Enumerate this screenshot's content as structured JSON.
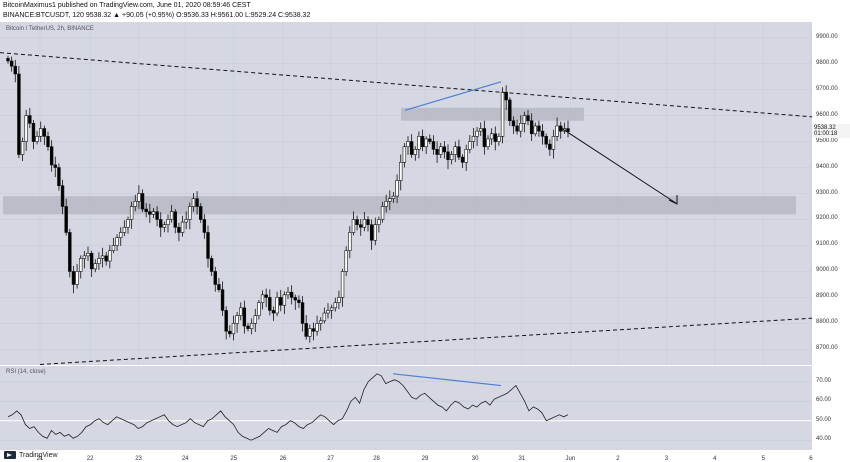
{
  "header": {
    "line1": "BitcoinMaximus1 published on TradingView.com, June 01, 2020 08:59:46 CEST",
    "line2": "BINANCE:BTCUSDT, 120  9538.32  ▲ +90.05 (+0.95%)  O:9536.33  H:9561.00  L:9529.24  C:9538.32"
  },
  "chart_title": "Bitcoin / TetherUS, 2h, BINANCE",
  "rsi_title": "RSI (14, close)",
  "price_tag": {
    "price": "9538.32",
    "countdown": "01:00:18"
  },
  "footer": {
    "brand": "TradingView"
  },
  "colors": {
    "bg": "#d5d8e2",
    "zone": "#b6b9c3",
    "candle_up": "#ffffff",
    "candle_down": "#000000",
    "divergence": "#4a7fd6"
  },
  "chart_data": {
    "type": "candlestick",
    "title": "Bitcoin / TetherUS, 2h, BINANCE",
    "y_ticks": [
      9900,
      9800,
      9700,
      9600,
      9500,
      9400,
      9300,
      9200,
      9100,
      9000,
      8900,
      8800,
      8700
    ],
    "y_tick_labels": [
      "9900.00",
      "9800.00",
      "9700.00",
      "9600.00",
      "9500.00",
      "9400.00",
      "9300.00",
      "9200.00",
      "9100.00",
      "9000.00",
      "8900.00",
      "8800.00",
      "8700.00"
    ],
    "ylim": [
      8640,
      9960
    ],
    "x_ticks": [
      {
        "label": "21",
        "pos": 0.047
      },
      {
        "label": "22",
        "pos": 0.106
      },
      {
        "label": "23",
        "pos": 0.163
      },
      {
        "label": "24",
        "pos": 0.218
      },
      {
        "label": "25",
        "pos": 0.275
      },
      {
        "label": "26",
        "pos": 0.333
      },
      {
        "label": "27",
        "pos": 0.389
      },
      {
        "label": "28",
        "pos": 0.443
      },
      {
        "label": "29",
        "pos": 0.5
      },
      {
        "label": "30",
        "pos": 0.559
      },
      {
        "label": "31",
        "pos": 0.614
      },
      {
        "label": "Jun",
        "pos": 0.671
      },
      {
        "label": "2",
        "pos": 0.727
      },
      {
        "label": "3",
        "pos": 0.784
      },
      {
        "label": "4",
        "pos": 0.841
      },
      {
        "label": "5",
        "pos": 0.898
      },
      {
        "label": "6",
        "pos": 0.954
      }
    ],
    "close_series": [
      9810,
      9790,
      9760,
      9450,
      9500,
      9600,
      9570,
      9500,
      9520,
      9550,
      9520,
      9480,
      9410,
      9400,
      9330,
      9250,
      9150,
      9000,
      8950,
      9000,
      9050,
      9060,
      9070,
      9010,
      9030,
      9050,
      9060,
      9040,
      9080,
      9100,
      9130,
      9150,
      9170,
      9200,
      9250,
      9270,
      9300,
      9240,
      9230,
      9220,
      9230,
      9200,
      9170,
      9180,
      9200,
      9230,
      9170,
      9150,
      9190,
      9200,
      9250,
      9280,
      9250,
      9200,
      9150,
      9050,
      9000,
      8950,
      8930,
      8850,
      8770,
      8760,
      8800,
      8830,
      8860,
      8790,
      8780,
      8800,
      8830,
      8880,
      8910,
      8900,
      8850,
      8840,
      8900,
      8870,
      8910,
      8920,
      8900,
      8890,
      8880,
      8800,
      8750,
      8780,
      8770,
      8800,
      8810,
      8840,
      8850,
      8860,
      8880,
      8900,
      9000,
      9080,
      9150,
      9200,
      9180,
      9170,
      9200,
      9180,
      9120,
      9180,
      9200,
      9250,
      9270,
      9280,
      9290,
      9350,
      9420,
      9480,
      9500,
      9450,
      9470,
      9520,
      9480,
      9510,
      9500,
      9470,
      9450,
      9480,
      9460,
      9430,
      9450,
      9480,
      9440,
      9420,
      9470,
      9500,
      9520,
      9540,
      9550,
      9480,
      9510,
      9530,
      9500,
      9520,
      9690,
      9660,
      9580,
      9560,
      9540,
      9570,
      9600,
      9580,
      9530,
      9560,
      9540,
      9520,
      9490,
      9470,
      9520,
      9560,
      9540,
      9550,
      9538
    ],
    "resistance_zone": [
      9580,
      9630
    ],
    "support_zone": [
      9220,
      9290
    ],
    "rsi_levels": [
      70,
      60,
      50,
      40
    ],
    "rsi_level_labels": [
      "70.00",
      "60.00",
      "50.00",
      "40.00"
    ],
    "rsi_values": [
      52,
      53,
      55,
      53,
      48,
      46,
      47,
      44,
      42,
      41,
      45,
      43,
      44,
      42,
      43,
      41,
      42,
      44,
      47,
      48,
      50,
      51,
      49,
      48,
      50,
      52,
      51,
      50,
      49,
      48,
      46,
      47,
      49,
      50,
      51,
      52,
      53,
      50,
      48,
      47,
      48,
      49,
      51,
      49,
      48,
      47,
      50,
      51,
      53,
      55,
      52,
      50,
      48,
      44,
      42,
      41,
      40,
      41,
      42,
      44,
      46,
      45,
      44,
      47,
      48,
      50,
      49,
      47,
      46,
      48,
      49,
      51,
      53,
      52,
      50,
      48,
      50,
      51,
      55,
      60,
      62,
      59,
      66,
      70,
      72,
      74,
      73,
      69,
      70,
      71,
      70,
      68,
      65,
      62,
      61,
      63,
      64,
      62,
      60,
      58,
      57,
      55,
      58,
      60,
      59,
      57,
      56,
      58,
      57,
      59,
      60,
      58,
      61,
      62,
      63,
      64,
      66,
      68,
      64,
      60,
      55,
      57,
      56,
      54,
      50,
      51,
      52,
      53,
      52,
      53
    ],
    "annotations": [
      "descending resistance line",
      "ascending support line",
      "price divergence line",
      "RSI divergence line",
      "projection arrow"
    ]
  }
}
